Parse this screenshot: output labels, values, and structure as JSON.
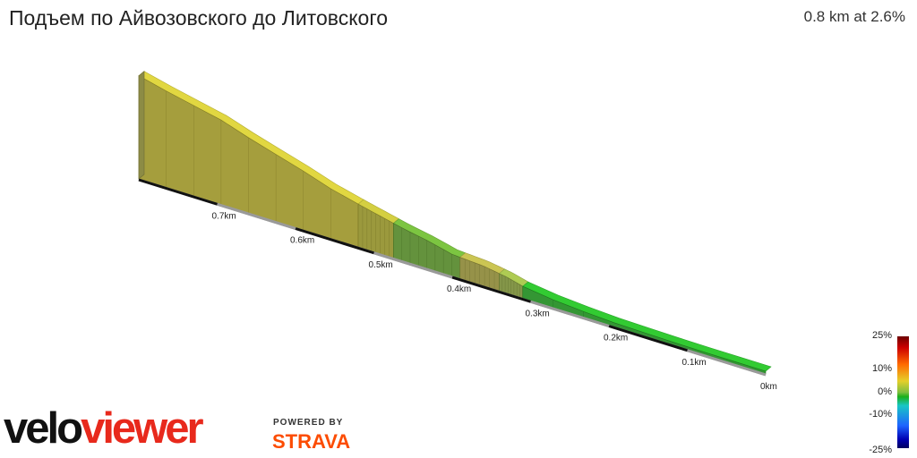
{
  "header": {
    "title": "Подъем по Айвозовского до Литовского",
    "summary": "0.8 km at 2.6%"
  },
  "chart_data": {
    "type": "area",
    "title": "Подъем по Айвозовского до Литовского",
    "xlabel": "",
    "ylabel": "",
    "x_unit": "km",
    "distance_ticks": [
      {
        "value": 0.0,
        "label": "0km"
      },
      {
        "value": 0.1,
        "label": "0.1km"
      },
      {
        "value": 0.2,
        "label": "0.2km"
      },
      {
        "value": 0.3,
        "label": "0.3km"
      },
      {
        "value": 0.4,
        "label": "0.4km"
      },
      {
        "value": 0.5,
        "label": "0.5km"
      },
      {
        "value": 0.6,
        "label": "0.6km"
      },
      {
        "value": 0.7,
        "label": "0.7km"
      }
    ],
    "x_range": [
      0,
      0.8
    ],
    "total_distance_km": 0.8,
    "average_gradient_pct": 2.6,
    "relative_elevation_m": {
      "x_km": [
        0,
        0.1,
        0.2,
        0.25,
        0.3,
        0.33,
        0.36,
        0.4,
        0.43,
        0.46,
        0.5,
        0.55,
        0.6,
        0.65,
        0.7,
        0.75,
        0.8
      ],
      "elevation": [
        0,
        0,
        0.3,
        0.8,
        1.5,
        2.8,
        3.6,
        4.0,
        5.2,
        6.1,
        7.6,
        9.5,
        12.2,
        14.5,
        17.2,
        18.8,
        20.8
      ]
    },
    "segments": [
      {
        "from_km": 0.0,
        "to_km": 0.31,
        "gradient_pct": 0.5,
        "color": "#2db52d"
      },
      {
        "from_km": 0.31,
        "to_km": 0.34,
        "gradient_pct": 3.0,
        "color": "#9bb54a"
      },
      {
        "from_km": 0.34,
        "to_km": 0.39,
        "gradient_pct": 4.5,
        "color": "#b5b04a"
      },
      {
        "from_km": 0.39,
        "to_km": 0.475,
        "gradient_pct": 1.5,
        "color": "#6fb03a"
      },
      {
        "from_km": 0.475,
        "to_km": 0.52,
        "gradient_pct": 4.0,
        "color": "#bdb93a"
      },
      {
        "from_km": 0.52,
        "to_km": 0.8,
        "gradient_pct": 4.5,
        "color": "#c9c03a"
      }
    ],
    "legend": {
      "placement": "bottom-right",
      "labels": [
        "25%",
        "10%",
        "0%",
        "-10%",
        "-25%"
      ],
      "values": [
        25,
        10,
        0,
        -10,
        -25
      ]
    }
  },
  "branding": {
    "logo_part1": "velo",
    "logo_part2": "viewer",
    "powered_by": "POWERED BY",
    "strava": "STRAVA"
  }
}
